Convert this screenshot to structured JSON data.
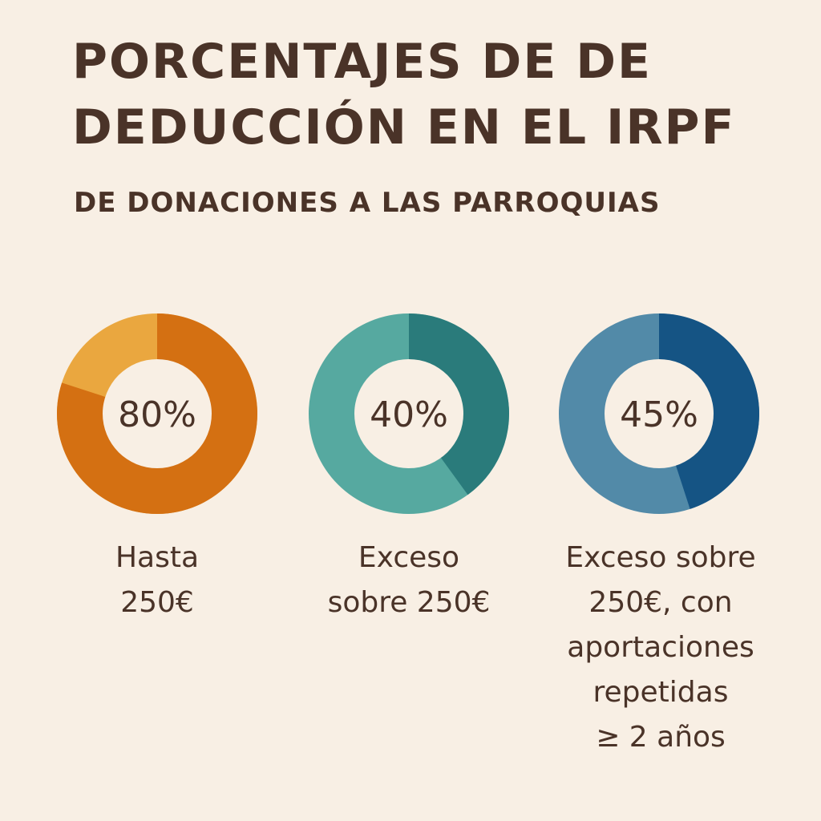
{
  "chart_data": {
    "type": "pie",
    "title": "PORCENTAJES DE DE DEDUCCIÓN EN EL IRPF",
    "subtitle": "DE DONACIONES A LAS PARROQUIAS",
    "charts": [
      {
        "value": 80,
        "value_label": "80%",
        "category": "Hasta\n250€",
        "colors": {
          "main": "#d47012",
          "rest": "#eaa73f"
        }
      },
      {
        "value": 40,
        "value_label": "40%",
        "category": "Exceso\nsobre 250€",
        "colors": {
          "main": "#2a7b7b",
          "rest": "#56a9a0"
        }
      },
      {
        "value": 45,
        "value_label": "45%",
        "category": "Exceso sobre\n250€, con\naportaciones\nrepetidas\n≥ 2 años",
        "colors": {
          "main": "#155484",
          "rest": "#528aa8"
        }
      }
    ]
  },
  "colors": {
    "background": "#f8efe4",
    "text": "#4a3328",
    "donut_hole": "#f8efe4"
  }
}
